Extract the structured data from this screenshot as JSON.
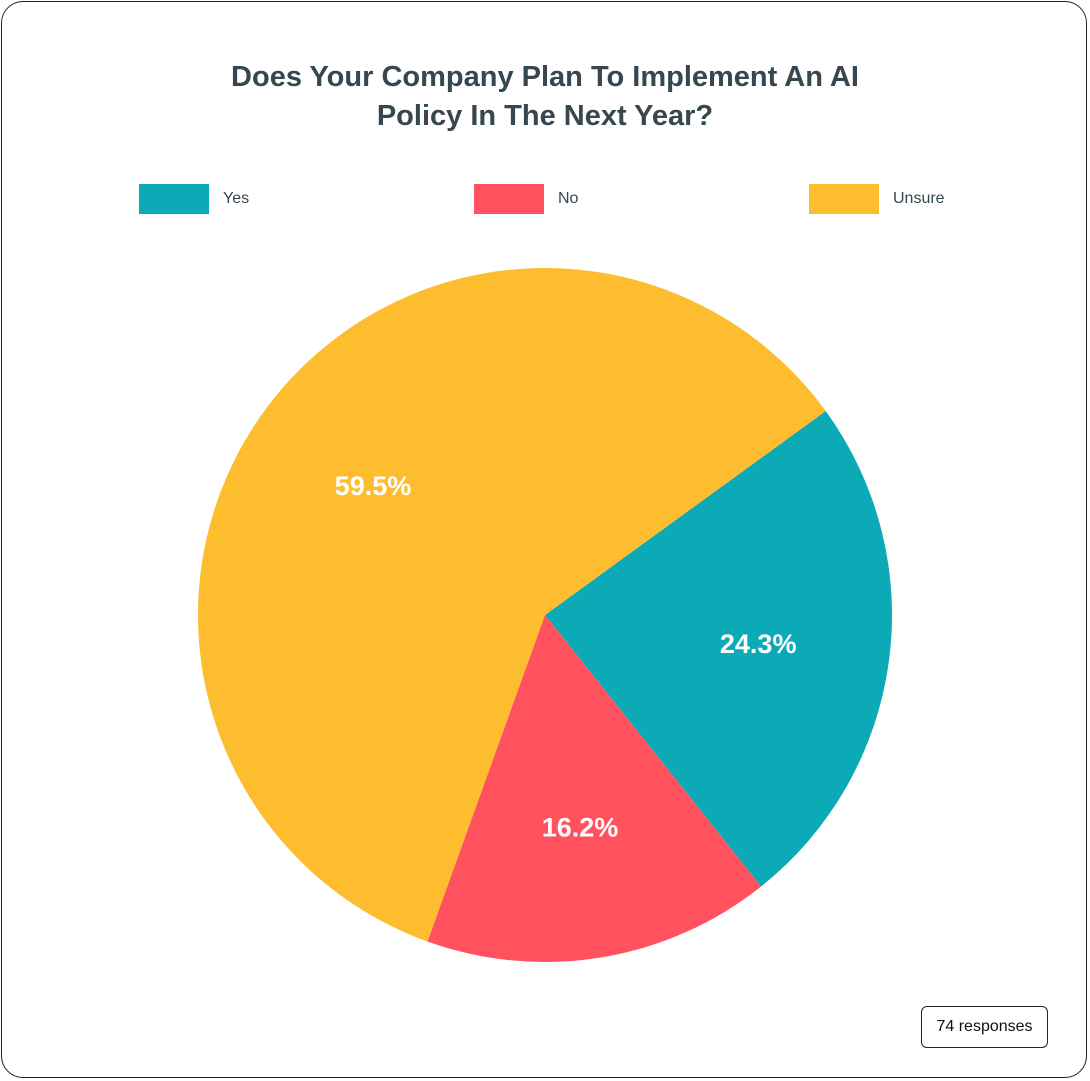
{
  "chart_data": {
    "type": "pie",
    "title": "Does Your Company Plan To Implement An AI Policy In The Next Year?",
    "title_lines": [
      "Does Your Company Plan To Implement An AI",
      "Policy In The Next Year?"
    ],
    "categories": [
      "Yes",
      "No",
      "Unsure"
    ],
    "values": [
      24.3,
      16.2,
      59.5
    ],
    "labels": [
      "24.3%",
      "16.2%",
      "59.5%"
    ],
    "colors": [
      "#0ca9b6",
      "#ff525e",
      "#fdbd2e"
    ],
    "legend_position": "top",
    "total_responses": 74
  },
  "legend": [
    {
      "label": "Yes",
      "color": "#0ca9b6"
    },
    {
      "label": "No",
      "color": "#ff525e"
    },
    {
      "label": "Unsure",
      "color": "#fdbd2e"
    }
  ],
  "footer": {
    "responses_badge": "74 responses"
  }
}
